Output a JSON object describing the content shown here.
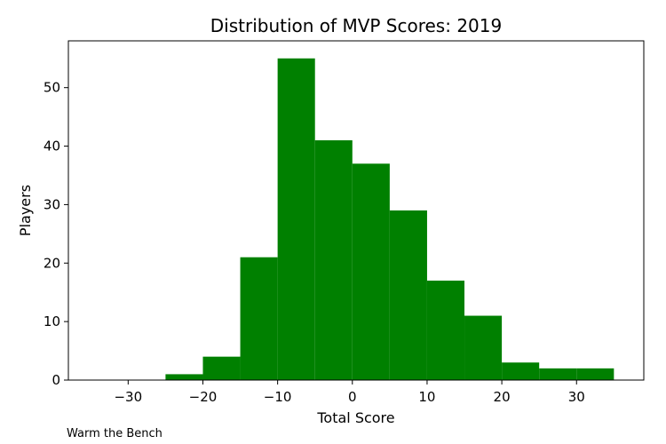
{
  "chart_data": {
    "type": "bar",
    "title": "Distribution of MVP Scores: 2019",
    "xlabel": "Total Score",
    "ylabel": "Players",
    "xlim": [
      -38,
      39
    ],
    "ylim": [
      0,
      58
    ],
    "xticks": [
      -30,
      -20,
      -10,
      0,
      10,
      20,
      30
    ],
    "yticks": [
      0,
      10,
      20,
      30,
      40,
      50
    ],
    "grid": false,
    "bar_color": "#008000",
    "bins": [
      {
        "x0": -25,
        "x1": -20,
        "count": 1
      },
      {
        "x0": -20,
        "x1": -15,
        "count": 4
      },
      {
        "x0": -15,
        "x1": -10,
        "count": 21
      },
      {
        "x0": -10,
        "x1": -5,
        "count": 55
      },
      {
        "x0": -5,
        "x1": 0,
        "count": 41
      },
      {
        "x0": 0,
        "x1": 5,
        "count": 37
      },
      {
        "x0": 5,
        "x1": 10,
        "count": 29
      },
      {
        "x0": 10,
        "x1": 15,
        "count": 17
      },
      {
        "x0": 15,
        "x1": 20,
        "count": 11
      },
      {
        "x0": 20,
        "x1": 25,
        "count": 3
      },
      {
        "x0": 25,
        "x1": 30,
        "count": 2
      },
      {
        "x0": 30,
        "x1": 35,
        "count": 2
      }
    ]
  },
  "footer": {
    "text": "Warm the Bench"
  }
}
